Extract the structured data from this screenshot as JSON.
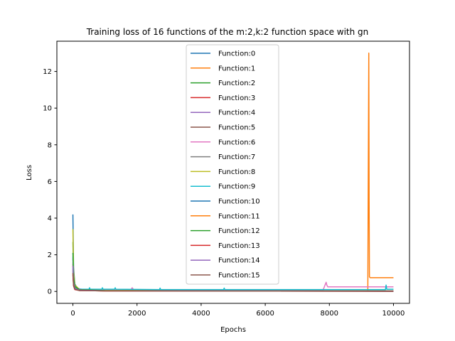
{
  "chart_data": {
    "type": "line",
    "title": "Training loss of 16 functions of the m:2,k:2 function space with gn",
    "xlabel": "Epochs",
    "ylabel": "Loss",
    "xlim": [
      -500,
      10500
    ],
    "ylim": [
      -0.65,
      13.65
    ],
    "xticks": [
      0,
      2000,
      4000,
      6000,
      8000,
      10000
    ],
    "yticks": [
      0,
      2,
      4,
      6,
      8,
      10,
      12
    ],
    "grid": false,
    "legend_position": "top-center",
    "series": [
      {
        "name": "Function:0",
        "color": "#1f77b4",
        "x": [
          0,
          20,
          60,
          150,
          400,
          1000,
          3000,
          6000,
          10000
        ],
        "y": [
          4.2,
          1.3,
          0.4,
          0.15,
          0.08,
          0.06,
          0.05,
          0.04,
          0.04
        ]
      },
      {
        "name": "Function:1",
        "color": "#ff7f0e",
        "x": [
          0,
          30,
          100,
          500,
          2000,
          6000,
          9200,
          9230,
          9240,
          9250,
          9270,
          9400,
          10000
        ],
        "y": [
          1.4,
          0.5,
          0.12,
          0.06,
          0.05,
          0.04,
          0.04,
          13.0,
          5.0,
          0.8,
          0.75,
          0.75,
          0.75
        ]
      },
      {
        "name": "Function:2",
        "color": "#2ca02c",
        "x": [
          0,
          20,
          60,
          200,
          1000,
          5000,
          10000
        ],
        "y": [
          2.7,
          0.9,
          0.3,
          0.1,
          0.05,
          0.03,
          0.02
        ]
      },
      {
        "name": "Function:3",
        "color": "#d62728",
        "x": [
          0,
          20,
          60,
          200,
          1000,
          5000,
          10000
        ],
        "y": [
          1.5,
          0.6,
          0.2,
          0.07,
          0.04,
          0.02,
          0.01
        ]
      },
      {
        "name": "Function:4",
        "color": "#9467bd",
        "x": [
          0,
          20,
          60,
          200,
          1000,
          5000,
          10000
        ],
        "y": [
          1.8,
          0.7,
          0.25,
          0.09,
          0.05,
          0.03,
          0.02
        ]
      },
      {
        "name": "Function:5",
        "color": "#8c564b",
        "x": [
          0,
          20,
          60,
          200,
          1000,
          5000,
          10000
        ],
        "y": [
          1.2,
          0.4,
          0.15,
          0.06,
          0.03,
          0.02,
          0.01
        ]
      },
      {
        "name": "Function:6",
        "color": "#e377c2",
        "x": [
          0,
          20,
          80,
          300,
          1200,
          1800,
          1850,
          1900,
          4000,
          7800,
          7900,
          7920,
          7950,
          8200,
          10000
        ],
        "y": [
          1.6,
          0.6,
          0.2,
          0.1,
          0.08,
          0.08,
          0.2,
          0.08,
          0.06,
          0.06,
          0.5,
          0.35,
          0.25,
          0.25,
          0.25
        ]
      },
      {
        "name": "Function:7",
        "color": "#7f7f7f",
        "x": [
          0,
          20,
          60,
          200,
          1000,
          5000,
          10000
        ],
        "y": [
          1.1,
          0.4,
          0.15,
          0.06,
          0.04,
          0.02,
          0.02
        ]
      },
      {
        "name": "Function:8",
        "color": "#bcbd22",
        "x": [
          0,
          20,
          60,
          200,
          1000,
          5000,
          10000
        ],
        "y": [
          3.4,
          1.1,
          0.35,
          0.12,
          0.06,
          0.04,
          0.03
        ]
      },
      {
        "name": "Function:9",
        "color": "#17becf",
        "x": [
          0,
          20,
          60,
          200,
          500,
          520,
          540,
          900,
          920,
          940,
          1300,
          1320,
          1340,
          2700,
          2720,
          2740,
          4700,
          4720,
          4740,
          7000,
          9750,
          9770,
          9790,
          10000
        ],
        "y": [
          1.9,
          0.7,
          0.25,
          0.12,
          0.12,
          0.2,
          0.12,
          0.12,
          0.2,
          0.12,
          0.12,
          0.2,
          0.12,
          0.1,
          0.18,
          0.1,
          0.1,
          0.18,
          0.1,
          0.1,
          0.1,
          0.35,
          0.12,
          0.12
        ]
      },
      {
        "name": "Function:10",
        "color": "#1f77b4",
        "x": [
          0,
          20,
          60,
          200,
          1000,
          5000,
          10000
        ],
        "y": [
          1.3,
          0.5,
          0.18,
          0.07,
          0.04,
          0.03,
          0.02
        ]
      },
      {
        "name": "Function:11",
        "color": "#ff7f0e",
        "x": [
          0,
          20,
          60,
          200,
          1000,
          5000,
          10000
        ],
        "y": [
          1.0,
          0.35,
          0.12,
          0.05,
          0.03,
          0.02,
          0.02
        ]
      },
      {
        "name": "Function:12",
        "color": "#2ca02c",
        "x": [
          0,
          20,
          60,
          200,
          1000,
          5000,
          10000
        ],
        "y": [
          2.1,
          0.8,
          0.28,
          0.1,
          0.05,
          0.03,
          0.02
        ]
      },
      {
        "name": "Function:13",
        "color": "#d62728",
        "x": [
          0,
          20,
          60,
          200,
          1000,
          5000,
          10000
        ],
        "y": [
          0.9,
          0.3,
          0.1,
          0.05,
          0.03,
          0.02,
          0.01
        ]
      },
      {
        "name": "Function:14",
        "color": "#9467bd",
        "x": [
          0,
          20,
          60,
          200,
          1000,
          5000,
          10000
        ],
        "y": [
          1.4,
          0.5,
          0.17,
          0.07,
          0.04,
          0.03,
          0.02
        ]
      },
      {
        "name": "Function:15",
        "color": "#8c564b",
        "x": [
          0,
          20,
          60,
          200,
          1000,
          5000,
          10000
        ],
        "y": [
          1.0,
          0.35,
          0.12,
          0.05,
          0.03,
          0.02,
          0.01
        ]
      }
    ]
  }
}
